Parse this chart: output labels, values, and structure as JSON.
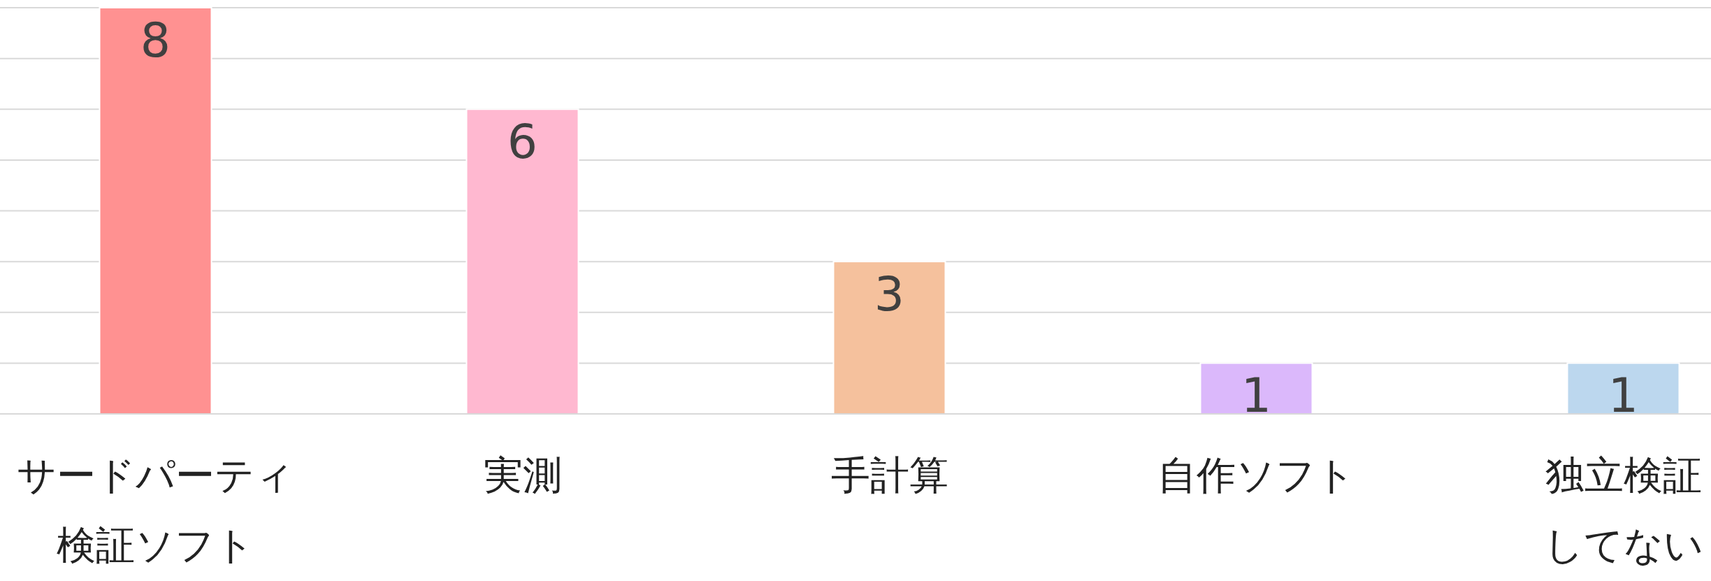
{
  "chart_data": {
    "type": "bar",
    "categories": [
      "サードパーティ検証ソフト",
      "実測",
      "手計算",
      "自作ソフト",
      "独立検証してない"
    ],
    "values": [
      8,
      6,
      3,
      1,
      1
    ],
    "colors": [
      "#ff9191",
      "#ffb8d0",
      "#f5c19d",
      "#dbb8fb",
      "#bcd7ee"
    ],
    "ylim": [
      0,
      8
    ],
    "yticks": [
      {
        "value": 0,
        "label": null
      },
      {
        "value": 1,
        "label": null
      },
      {
        "value": 2,
        "label": null
      },
      {
        "value": 3,
        "label": null
      },
      {
        "value": 4,
        "label": null
      },
      {
        "value": 5,
        "label": null
      },
      {
        "value": 6,
        "label": null
      },
      {
        "value": 7,
        "label": null
      },
      {
        "value": 8,
        "label": null
      }
    ],
    "grid": "y",
    "data_labels": true,
    "tick_labels": "x"
  }
}
